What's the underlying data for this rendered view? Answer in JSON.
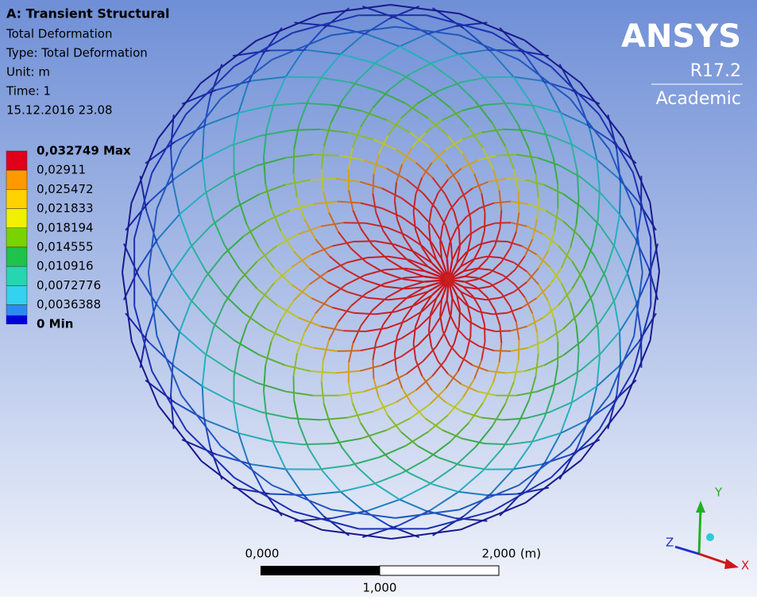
{
  "header": {
    "title": "A: Transient Structural",
    "lines": [
      "Total Deformation",
      "Type: Total Deformation",
      "Unit: m",
      "Time: 1",
      "15.12.2016 23.08"
    ]
  },
  "legend": [
    {
      "label": "0,032749 Max",
      "color": "#e0001a"
    },
    {
      "label": "0,02911",
      "color": "#ff9900"
    },
    {
      "label": "0,025472",
      "color": "#ffd200"
    },
    {
      "label": "0,021833",
      "color": "#f0f000"
    },
    {
      "label": "0,018194",
      "color": "#7ad200"
    },
    {
      "label": "0,014555",
      "color": "#1fc24a"
    },
    {
      "label": "0,010916",
      "color": "#26d6b0"
    },
    {
      "label": "0,0072776",
      "color": "#33d2f0"
    },
    {
      "label": "0,0036388",
      "color": "#2a8cf0"
    },
    {
      "label": "0 Min",
      "color": "#0000d8"
    }
  ],
  "logo": {
    "brand": "ANSYS",
    "version": "R17.2",
    "edition": "Academic"
  },
  "scale_bar": {
    "left": "0,000",
    "right": "2,000",
    "unit": "(m)",
    "middle": "1,000"
  },
  "triad": {
    "x": "X",
    "y": "Y",
    "z": "Z"
  }
}
